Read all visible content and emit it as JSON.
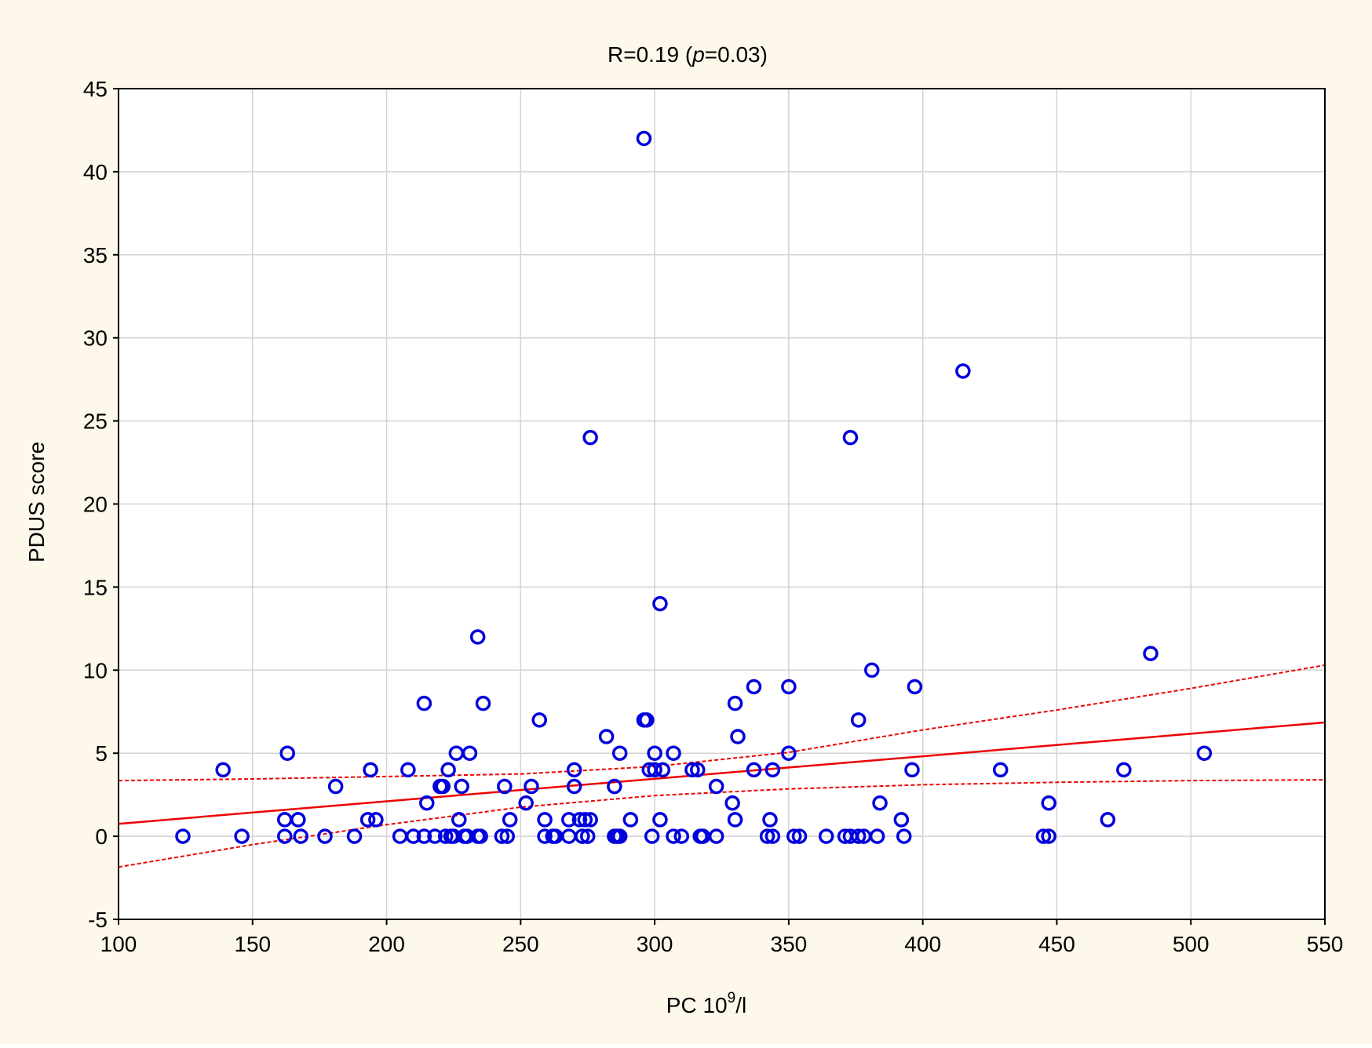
{
  "chart_data": {
    "type": "scatter",
    "title": {
      "prefix": "R=0.19 (",
      "p_letter": "p",
      "suffix": "=0.03)"
    },
    "xlabel": {
      "base": "PC 10",
      "sup": "9",
      "tail": "/l"
    },
    "ylabel": "PDUS score",
    "xlim": [
      100,
      550
    ],
    "ylim": [
      -5,
      45
    ],
    "x_ticks": [
      100,
      150,
      200,
      250,
      300,
      350,
      400,
      450,
      500,
      550
    ],
    "y_ticks": [
      -5,
      0,
      5,
      10,
      15,
      20,
      25,
      30,
      35,
      40,
      45
    ],
    "grid": true,
    "colors": {
      "background": "#fdf8ea",
      "plot_area": "#ffffff",
      "grid": "#d3d3d3",
      "points": "#0000dd",
      "fit_line": "#ee0000"
    },
    "points": [
      {
        "x": 296,
        "y": 42
      },
      {
        "x": 415,
        "y": 28
      },
      {
        "x": 276,
        "y": 24
      },
      {
        "x": 373,
        "y": 24
      },
      {
        "x": 302,
        "y": 14
      },
      {
        "x": 234,
        "y": 12
      },
      {
        "x": 485,
        "y": 11
      },
      {
        "x": 381,
        "y": 10
      },
      {
        "x": 337,
        "y": 9
      },
      {
        "x": 350,
        "y": 9
      },
      {
        "x": 397,
        "y": 9
      },
      {
        "x": 214,
        "y": 8
      },
      {
        "x": 236,
        "y": 8
      },
      {
        "x": 330,
        "y": 8
      },
      {
        "x": 257,
        "y": 7
      },
      {
        "x": 296,
        "y": 7
      },
      {
        "x": 297,
        "y": 7
      },
      {
        "x": 376,
        "y": 7
      },
      {
        "x": 282,
        "y": 6
      },
      {
        "x": 331,
        "y": 6
      },
      {
        "x": 163,
        "y": 5
      },
      {
        "x": 226,
        "y": 5
      },
      {
        "x": 231,
        "y": 5
      },
      {
        "x": 287,
        "y": 5
      },
      {
        "x": 300,
        "y": 5
      },
      {
        "x": 307,
        "y": 5
      },
      {
        "x": 350,
        "y": 5
      },
      {
        "x": 505,
        "y": 5
      },
      {
        "x": 139,
        "y": 4
      },
      {
        "x": 194,
        "y": 4
      },
      {
        "x": 208,
        "y": 4
      },
      {
        "x": 223,
        "y": 4
      },
      {
        "x": 270,
        "y": 4
      },
      {
        "x": 298,
        "y": 4
      },
      {
        "x": 300,
        "y": 4
      },
      {
        "x": 303,
        "y": 4
      },
      {
        "x": 314,
        "y": 4
      },
      {
        "x": 316,
        "y": 4
      },
      {
        "x": 337,
        "y": 4
      },
      {
        "x": 344,
        "y": 4
      },
      {
        "x": 396,
        "y": 4
      },
      {
        "x": 429,
        "y": 4
      },
      {
        "x": 475,
        "y": 4
      },
      {
        "x": 181,
        "y": 3
      },
      {
        "x": 220,
        "y": 3
      },
      {
        "x": 221,
        "y": 3
      },
      {
        "x": 228,
        "y": 3
      },
      {
        "x": 244,
        "y": 3
      },
      {
        "x": 254,
        "y": 3
      },
      {
        "x": 270,
        "y": 3
      },
      {
        "x": 285,
        "y": 3
      },
      {
        "x": 323,
        "y": 3
      },
      {
        "x": 215,
        "y": 2
      },
      {
        "x": 252,
        "y": 2
      },
      {
        "x": 329,
        "y": 2
      },
      {
        "x": 384,
        "y": 2
      },
      {
        "x": 447,
        "y": 2
      },
      {
        "x": 162,
        "y": 1
      },
      {
        "x": 167,
        "y": 1
      },
      {
        "x": 193,
        "y": 1
      },
      {
        "x": 196,
        "y": 1
      },
      {
        "x": 227,
        "y": 1
      },
      {
        "x": 246,
        "y": 1
      },
      {
        "x": 259,
        "y": 1
      },
      {
        "x": 268,
        "y": 1
      },
      {
        "x": 272,
        "y": 1
      },
      {
        "x": 274,
        "y": 1
      },
      {
        "x": 276,
        "y": 1
      },
      {
        "x": 291,
        "y": 1
      },
      {
        "x": 302,
        "y": 1
      },
      {
        "x": 330,
        "y": 1
      },
      {
        "x": 343,
        "y": 1
      },
      {
        "x": 392,
        "y": 1
      },
      {
        "x": 469,
        "y": 1
      },
      {
        "x": 124,
        "y": 0
      },
      {
        "x": 146,
        "y": 0
      },
      {
        "x": 162,
        "y": 0
      },
      {
        "x": 168,
        "y": 0
      },
      {
        "x": 177,
        "y": 0
      },
      {
        "x": 188,
        "y": 0
      },
      {
        "x": 205,
        "y": 0
      },
      {
        "x": 210,
        "y": 0
      },
      {
        "x": 214,
        "y": 0
      },
      {
        "x": 218,
        "y": 0
      },
      {
        "x": 222,
        "y": 0
      },
      {
        "x": 224,
        "y": 0
      },
      {
        "x": 225,
        "y": 0
      },
      {
        "x": 229,
        "y": 0
      },
      {
        "x": 230,
        "y": 0
      },
      {
        "x": 234,
        "y": 0
      },
      {
        "x": 235,
        "y": 0
      },
      {
        "x": 243,
        "y": 0
      },
      {
        "x": 245,
        "y": 0
      },
      {
        "x": 259,
        "y": 0
      },
      {
        "x": 262,
        "y": 0
      },
      {
        "x": 263,
        "y": 0
      },
      {
        "x": 268,
        "y": 0
      },
      {
        "x": 273,
        "y": 0
      },
      {
        "x": 275,
        "y": 0
      },
      {
        "x": 285,
        "y": 0
      },
      {
        "x": 286,
        "y": 0
      },
      {
        "x": 287,
        "y": 0
      },
      {
        "x": 299,
        "y": 0
      },
      {
        "x": 307,
        "y": 0
      },
      {
        "x": 310,
        "y": 0
      },
      {
        "x": 317,
        "y": 0
      },
      {
        "x": 318,
        "y": 0
      },
      {
        "x": 323,
        "y": 0
      },
      {
        "x": 342,
        "y": 0
      },
      {
        "x": 344,
        "y": 0
      },
      {
        "x": 352,
        "y": 0
      },
      {
        "x": 354,
        "y": 0
      },
      {
        "x": 364,
        "y": 0
      },
      {
        "x": 371,
        "y": 0
      },
      {
        "x": 373,
        "y": 0
      },
      {
        "x": 376,
        "y": 0
      },
      {
        "x": 378,
        "y": 0
      },
      {
        "x": 383,
        "y": 0
      },
      {
        "x": 393,
        "y": 0
      },
      {
        "x": 445,
        "y": 0
      },
      {
        "x": 447,
        "y": 0
      }
    ],
    "regression": {
      "x": [
        100,
        550
      ],
      "y": [
        0.75,
        6.85
      ]
    },
    "confidence_band": {
      "lower": {
        "x": [
          100,
          150,
          200,
          250,
          300,
          350,
          400,
          450,
          500,
          550
        ],
        "y": [
          -1.85,
          -0.5,
          0.7,
          1.75,
          2.45,
          2.85,
          3.1,
          3.25,
          3.35,
          3.4
        ]
      },
      "upper": {
        "x": [
          100,
          150,
          200,
          250,
          300,
          350,
          400,
          450,
          500,
          550
        ],
        "y": [
          3.35,
          3.45,
          3.6,
          3.75,
          4.2,
          5.05,
          6.4,
          7.6,
          8.9,
          10.3
        ]
      }
    }
  }
}
